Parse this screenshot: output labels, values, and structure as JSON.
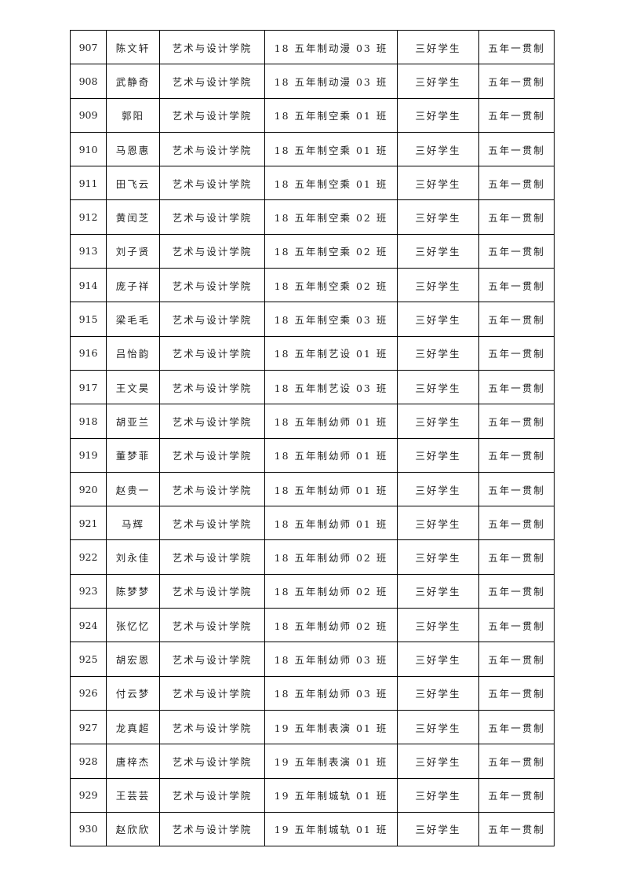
{
  "rows": [
    [
      "907",
      "陈文轩",
      "艺术与设计学院",
      "18 五年制动漫 03 班",
      "三好学生",
      "五年一贯制"
    ],
    [
      "908",
      "武静奇",
      "艺术与设计学院",
      "18 五年制动漫 03 班",
      "三好学生",
      "五年一贯制"
    ],
    [
      "909",
      "郭阳",
      "艺术与设计学院",
      "18 五年制空乘 01 班",
      "三好学生",
      "五年一贯制"
    ],
    [
      "910",
      "马恩惠",
      "艺术与设计学院",
      "18 五年制空乘 01 班",
      "三好学生",
      "五年一贯制"
    ],
    [
      "911",
      "田飞云",
      "艺术与设计学院",
      "18 五年制空乘 01 班",
      "三好学生",
      "五年一贯制"
    ],
    [
      "912",
      "黄闰芝",
      "艺术与设计学院",
      "18 五年制空乘 02 班",
      "三好学生",
      "五年一贯制"
    ],
    [
      "913",
      "刘子贤",
      "艺术与设计学院",
      "18 五年制空乘 02 班",
      "三好学生",
      "五年一贯制"
    ],
    [
      "914",
      "庞子祥",
      "艺术与设计学院",
      "18 五年制空乘 02 班",
      "三好学生",
      "五年一贯制"
    ],
    [
      "915",
      "梁毛毛",
      "艺术与设计学院",
      "18 五年制空乘 03 班",
      "三好学生",
      "五年一贯制"
    ],
    [
      "916",
      "吕怡韵",
      "艺术与设计学院",
      "18 五年制艺设 01 班",
      "三好学生",
      "五年一贯制"
    ],
    [
      "917",
      "王文昊",
      "艺术与设计学院",
      "18 五年制艺设 03 班",
      "三好学生",
      "五年一贯制"
    ],
    [
      "918",
      "胡亚兰",
      "艺术与设计学院",
      "18 五年制幼师 01 班",
      "三好学生",
      "五年一贯制"
    ],
    [
      "919",
      "董梦菲",
      "艺术与设计学院",
      "18 五年制幼师 01 班",
      "三好学生",
      "五年一贯制"
    ],
    [
      "920",
      "赵贵一",
      "艺术与设计学院",
      "18 五年制幼师 01 班",
      "三好学生",
      "五年一贯制"
    ],
    [
      "921",
      "马辉",
      "艺术与设计学院",
      "18 五年制幼师 01 班",
      "三好学生",
      "五年一贯制"
    ],
    [
      "922",
      "刘永佳",
      "艺术与设计学院",
      "18 五年制幼师 02 班",
      "三好学生",
      "五年一贯制"
    ],
    [
      "923",
      "陈梦梦",
      "艺术与设计学院",
      "18 五年制幼师 02 班",
      "三好学生",
      "五年一贯制"
    ],
    [
      "924",
      "张忆忆",
      "艺术与设计学院",
      "18 五年制幼师 02 班",
      "三好学生",
      "五年一贯制"
    ],
    [
      "925",
      "胡宏恩",
      "艺术与设计学院",
      "18 五年制幼师 03 班",
      "三好学生",
      "五年一贯制"
    ],
    [
      "926",
      "付云梦",
      "艺术与设计学院",
      "18 五年制幼师 03 班",
      "三好学生",
      "五年一贯制"
    ],
    [
      "927",
      "龙真超",
      "艺术与设计学院",
      "19 五年制表演 01 班",
      "三好学生",
      "五年一贯制"
    ],
    [
      "928",
      "唐梓杰",
      "艺术与设计学院",
      "19 五年制表演 01 班",
      "三好学生",
      "五年一贯制"
    ],
    [
      "929",
      "王芸芸",
      "艺术与设计学院",
      "19 五年制城轨 01 班",
      "三好学生",
      "五年一贯制"
    ],
    [
      "930",
      "赵欣欣",
      "艺术与设计学院",
      "19 五年制城轨 01 班",
      "三好学生",
      "五年一贯制"
    ]
  ]
}
